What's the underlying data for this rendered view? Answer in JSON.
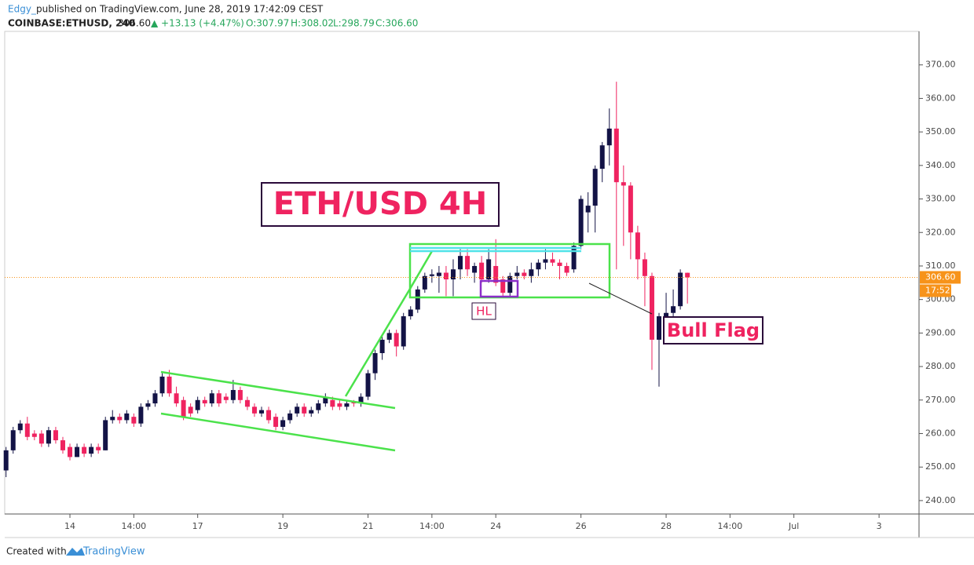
{
  "header": {
    "author": "Edgy_",
    "published": "published on TradingView.com, June 28, 2019 17:42:09 CEST",
    "symbol": "COINBASE:ETHUSD, 240",
    "price": "306.60",
    "change": "▲ +13.13 (+4.47%)",
    "open": "O:307.97",
    "high": "H:308.02",
    "low": "L:298.79",
    "close": "C:306.60"
  },
  "footer": {
    "created": "Created with",
    "brand": "TradingView"
  },
  "chart_data": {
    "type": "candlestick",
    "title": "ETH/USD 4H",
    "annotations": [
      "HL",
      "Bull Flag"
    ],
    "up_color": "#131346",
    "down_color": "#ef2360",
    "last_price": {
      "value": 306.6,
      "label": "306.60"
    },
    "countdown": "17:52",
    "last_color": "#f7931a",
    "ylim": [
      236,
      380
    ],
    "yticks": [
      {
        "value": 240,
        "label": "240.00"
      },
      {
        "value": 250,
        "label": "250.00"
      },
      {
        "value": 260,
        "label": "260.00"
      },
      {
        "value": 270,
        "label": "270.00"
      },
      {
        "value": 280,
        "label": "280.00"
      },
      {
        "value": 290,
        "label": "290.00"
      },
      {
        "value": 300,
        "label": "300.00"
      },
      {
        "value": 310,
        "label": "310.00"
      },
      {
        "value": 320,
        "label": "320.00"
      },
      {
        "value": 330,
        "label": "330.00"
      },
      {
        "value": 340,
        "label": "340.00"
      },
      {
        "value": 350,
        "label": "350.00"
      },
      {
        "value": 360,
        "label": "360.00"
      },
      {
        "value": 370,
        "label": "370.00"
      }
    ],
    "categories": [
      null,
      null,
      null,
      null,
      null,
      null,
      null,
      null,
      null,
      "14",
      null,
      null,
      null,
      null,
      null,
      null,
      null,
      null,
      "14:00",
      null,
      null,
      null,
      null,
      null,
      null,
      null,
      null,
      "17",
      null,
      null,
      null,
      null,
      null,
      null,
      null,
      null,
      null,
      null,
      null,
      "19",
      null,
      null,
      null,
      null,
      null,
      null,
      null,
      null,
      null,
      null,
      null,
      "21",
      null,
      null,
      null,
      null,
      null,
      null,
      null,
      null,
      "14:00",
      null,
      null,
      null,
      null,
      null,
      null,
      null,
      null,
      "24",
      null,
      null,
      null,
      null,
      null,
      null,
      null,
      null,
      null,
      null,
      null,
      "26",
      null,
      null,
      null,
      null,
      null,
      null,
      null,
      null,
      null,
      null,
      null,
      "28",
      null,
      null,
      null,
      null,
      null,
      null,
      null,
      null,
      "14:00",
      null,
      null,
      null,
      null,
      null,
      null,
      null,
      null,
      "Jul",
      null,
      null,
      null,
      null,
      null,
      null,
      null,
      null,
      null,
      null,
      null,
      "3"
    ],
    "open": [
      249,
      255,
      261,
      263,
      260,
      260,
      257,
      261,
      258,
      256,
      253,
      256,
      254,
      256,
      255,
      264,
      265,
      264,
      265,
      263,
      268,
      269,
      272,
      277,
      272,
      270,
      268,
      267,
      270,
      269,
      272,
      271,
      270,
      273,
      270,
      268,
      266,
      267,
      265,
      262,
      264,
      266,
      268,
      266,
      267,
      269,
      270,
      269,
      268,
      269.5,
      269,
      271,
      278,
      284,
      288,
      290,
      286,
      295,
      297,
      303,
      307,
      307,
      308,
      306,
      309,
      313,
      308,
      311,
      306,
      310,
      306,
      302,
      307,
      308,
      307,
      309,
      311,
      312,
      311,
      310,
      309,
      316,
      326,
      328,
      339,
      346,
      351,
      335,
      334,
      320,
      312,
      307,
      288,
      295,
      296,
      298,
      307.97,
      null,
      null,
      null,
      null,
      null,
      null,
      null,
      null,
      null,
      null,
      null,
      null,
      null,
      null,
      null,
      null,
      null,
      null,
      null,
      null,
      null,
      null,
      null,
      null,
      null,
      null,
      null
    ],
    "high": [
      256,
      262,
      264,
      265,
      261,
      261,
      262,
      262,
      259,
      257,
      257,
      257,
      257,
      257,
      265,
      267,
      266,
      267,
      266,
      269,
      270,
      273,
      278,
      279,
      274,
      271,
      269,
      271,
      271,
      273,
      273,
      272,
      276,
      274,
      271,
      269,
      268,
      268,
      266,
      265,
      267,
      269,
      269,
      268,
      270,
      272,
      271,
      270,
      270,
      270,
      272,
      279,
      285,
      289,
      291,
      291,
      296,
      298,
      304,
      308,
      309,
      310,
      310,
      312,
      315,
      315,
      311,
      313,
      315,
      318,
      307,
      308,
      310,
      309,
      311,
      312,
      315,
      314,
      312,
      311,
      317,
      331,
      332,
      340,
      347,
      357,
      365,
      340,
      335,
      322,
      314,
      308,
      296,
      302,
      303,
      309,
      308.02,
      null,
      null,
      null,
      null,
      null,
      null,
      null,
      null,
      null,
      null,
      null,
      null,
      null,
      null,
      null,
      null,
      null,
      null,
      null,
      null,
      null,
      null,
      null,
      null,
      null,
      null,
      null
    ],
    "low": [
      247,
      254,
      260,
      258,
      258,
      256,
      256,
      257,
      254,
      252,
      253,
      253,
      253,
      254,
      255,
      263,
      263,
      263,
      262,
      262,
      267,
      268,
      271,
      271,
      268,
      264,
      265,
      266,
      268,
      268,
      268,
      269,
      269,
      269,
      267,
      265,
      265,
      263,
      261,
      261,
      263,
      265,
      265,
      265,
      266,
      268,
      267,
      267,
      267,
      268,
      268,
      270,
      276,
      282,
      287,
      283,
      285,
      294,
      296,
      302,
      305,
      302,
      301,
      301,
      306,
      307,
      305,
      305,
      305,
      304,
      301,
      301,
      306,
      306,
      305,
      307,
      309,
      310,
      306,
      307,
      308,
      315,
      320,
      320,
      335,
      340,
      309,
      316,
      312,
      306,
      298,
      279,
      274,
      293,
      295,
      297,
      298.79,
      null,
      null,
      null,
      null,
      null,
      null,
      null,
      null,
      null,
      null,
      null,
      null,
      null,
      null,
      null,
      null,
      null,
      null,
      null,
      null,
      null,
      null,
      null,
      null,
      null,
      null,
      null
    ],
    "close": [
      255,
      261,
      263,
      259,
      259,
      257,
      261,
      258,
      255,
      253,
      256,
      254,
      256,
      255,
      264,
      265,
      264,
      266,
      263,
      268,
      269,
      272,
      277,
      272,
      269,
      265,
      266,
      270,
      269,
      272,
      269,
      270,
      273,
      270,
      268,
      266,
      267,
      264,
      262,
      264,
      266,
      268,
      266,
      267,
      269,
      271,
      268,
      268,
      269,
      269,
      271,
      278,
      284,
      288,
      290,
      286,
      295,
      297,
      303,
      307,
      307.5,
      308,
      306,
      309,
      313,
      309,
      310,
      306,
      312,
      305,
      302,
      307,
      308,
      307,
      309,
      311,
      312,
      311,
      310,
      308,
      316,
      330,
      328,
      339,
      346,
      351,
      335,
      334,
      320,
      312,
      307,
      288,
      295,
      296,
      298,
      308,
      306.6,
      null,
      null,
      null,
      null,
      null,
      null,
      null,
      null,
      null,
      null,
      null,
      null,
      null,
      null,
      null,
      null,
      null,
      null,
      null,
      null,
      null,
      null,
      null,
      null,
      null,
      null,
      null
    ]
  }
}
